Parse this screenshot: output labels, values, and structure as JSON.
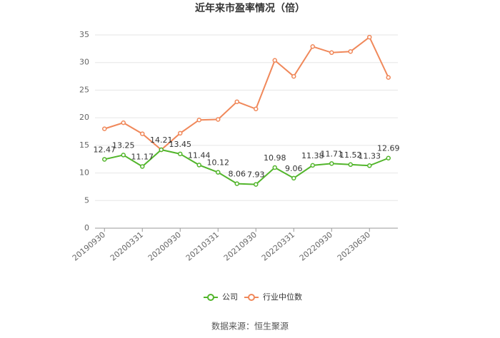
{
  "chart_data": {
    "type": "line",
    "title": "近年来市盈率情况（倍）",
    "categories": [
      "20190930",
      null,
      "20200331",
      null,
      "20200930",
      null,
      "20210331",
      null,
      "20210930",
      null,
      "20220331",
      null,
      "20220930",
      null,
      "20230630",
      null
    ],
    "series": [
      {
        "name": "公司",
        "color": "#52b52b",
        "values": [
          12.47,
          13.25,
          11.17,
          14.21,
          13.45,
          11.44,
          10.12,
          8.06,
          7.93,
          10.98,
          9.06,
          11.38,
          11.71,
          11.52,
          11.33,
          12.69
        ]
      },
      {
        "name": "行业中位数",
        "color": "#f0885a",
        "values": [
          18.0,
          19.1,
          17.1,
          14.2,
          17.2,
          19.6,
          19.7,
          22.9,
          21.6,
          30.4,
          27.5,
          32.9,
          31.8,
          32.0,
          34.6,
          27.3
        ]
      }
    ],
    "ylim": [
      0,
      35
    ],
    "yticks": [
      0,
      5,
      10,
      15,
      20,
      25,
      30,
      35
    ],
    "grid": true,
    "source": "数据来源：恒生聚源"
  }
}
